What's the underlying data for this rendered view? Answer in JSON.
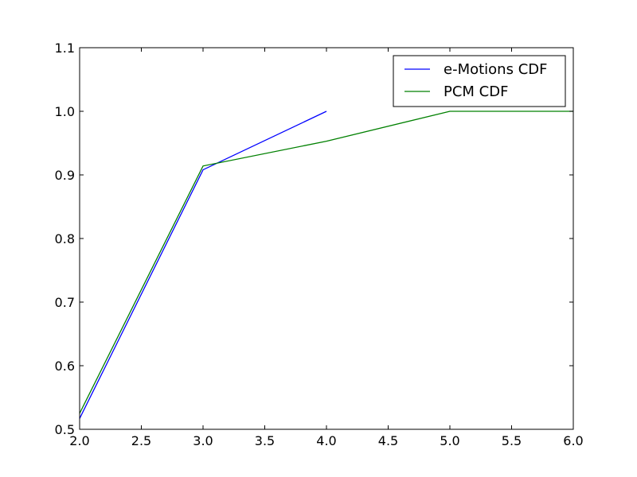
{
  "chart_data": {
    "type": "line",
    "title": "",
    "xlabel": "",
    "ylabel": "",
    "xlim": [
      2.0,
      6.0
    ],
    "ylim": [
      0.5,
      1.1
    ],
    "x_ticks": [
      "2.0",
      "2.5",
      "3.0",
      "3.5",
      "4.0",
      "4.5",
      "5.0",
      "5.5",
      "6.0"
    ],
    "y_ticks": [
      "0.5",
      "0.6",
      "0.7",
      "0.8",
      "0.9",
      "1.0",
      "1.1"
    ],
    "grid": false,
    "legend_position": "top-right",
    "series": [
      {
        "name": "e-Motions CDF",
        "color": "#0000ff",
        "x": [
          2.0,
          3.0,
          4.0
        ],
        "y": [
          0.517,
          0.908,
          1.0
        ]
      },
      {
        "name": "PCM CDF",
        "color": "#008000",
        "x": [
          2.0,
          3.0,
          4.0,
          5.0,
          6.0
        ],
        "y": [
          0.525,
          0.914,
          0.953,
          1.0,
          1.0
        ]
      }
    ]
  }
}
